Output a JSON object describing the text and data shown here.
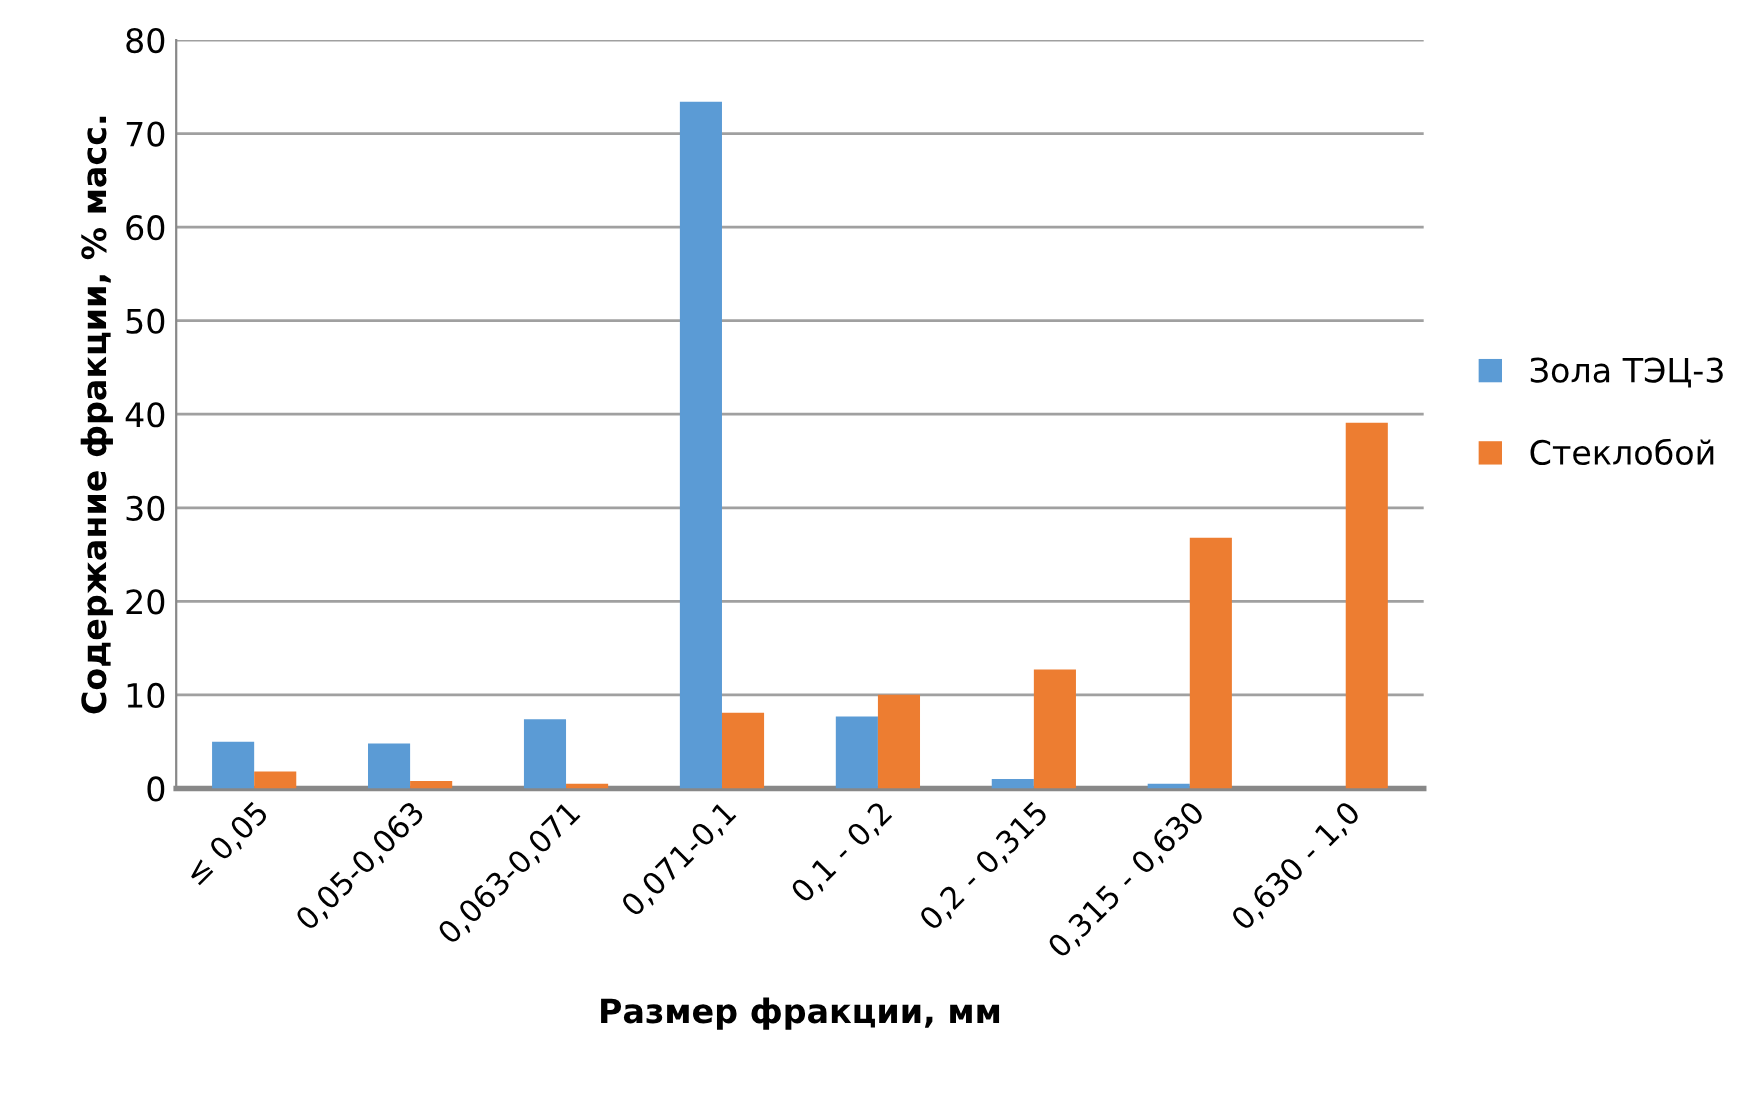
{
  "chart_data": {
    "type": "bar",
    "xlabel": "Размер фракции, мм",
    "ylabel": "Содержание фракции, % масс.",
    "categories": [
      "≤ 0,05",
      "0,05-0,063",
      "0,063-0,071",
      "0,071-0,1",
      "0,1 - 0,2",
      "0,2 - 0,315",
      "0,315 - 0,630",
      "0,630 - 1,0"
    ],
    "series": [
      {
        "name": "Зола ТЭЦ-3",
        "color": "#5b9bd5",
        "values": [
          5.0,
          4.8,
          7.4,
          73.4,
          7.7,
          1.0,
          0.5,
          0
        ]
      },
      {
        "name": "Стеклобой",
        "color": "#ed7d31",
        "values": [
          1.8,
          0.8,
          0.5,
          8.1,
          10.0,
          12.7,
          26.8,
          39.1
        ]
      }
    ],
    "ylim": [
      0,
      80
    ],
    "yticks": [
      0,
      10,
      20,
      30,
      40,
      50,
      60,
      70,
      80
    ],
    "grid": "y",
    "legend": "right"
  }
}
